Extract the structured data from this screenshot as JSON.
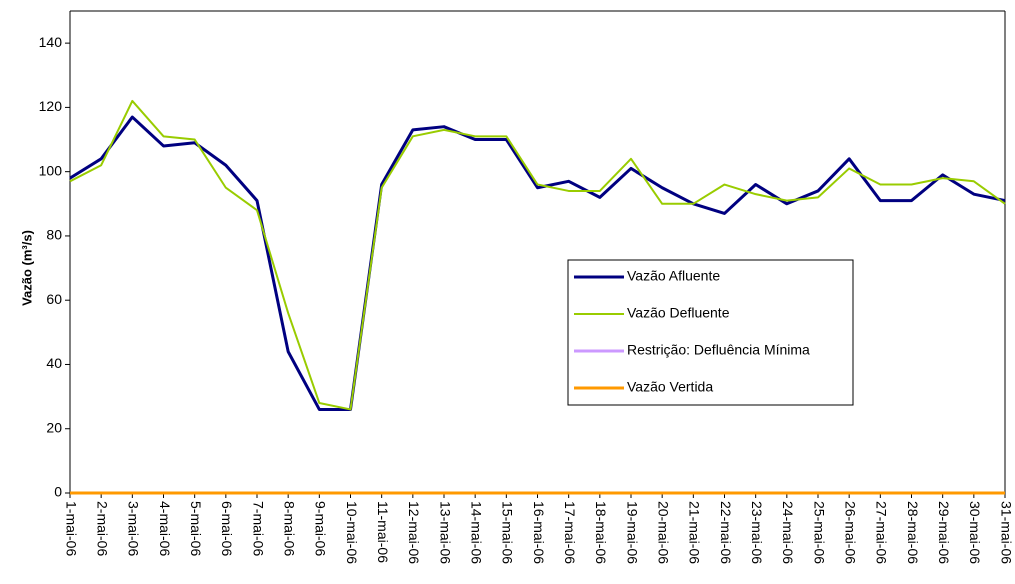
{
  "chart_data": {
    "type": "line",
    "y_label": "Vazão (m³/s)",
    "categories": [
      "1-mai-06",
      "2-mai-06",
      "3-mai-06",
      "4-mai-06",
      "5-mai-06",
      "6-mai-06",
      "7-mai-06",
      "8-mai-06",
      "9-mai-06",
      "10-mai-06",
      "11-mai-06",
      "12-mai-06",
      "13-mai-06",
      "14-mai-06",
      "15-mai-06",
      "16-mai-06",
      "17-mai-06",
      "18-mai-06",
      "19-mai-06",
      "20-mai-06",
      "21-mai-06",
      "22-mai-06",
      "23-mai-06",
      "24-mai-06",
      "25-mai-06",
      "26-mai-06",
      "27-mai-06",
      "28-mai-06",
      "29-mai-06",
      "30-mai-06",
      "31-mai-06"
    ],
    "series": [
      {
        "name": "Vazão Afluente",
        "color": "#000080",
        "width": 3,
        "values": [
          98,
          104,
          117,
          108,
          109,
          102,
          91,
          44,
          26,
          26,
          96,
          113,
          114,
          110,
          110,
          95,
          97,
          92,
          101,
          95,
          90,
          87,
          96,
          90,
          94,
          104,
          91,
          91,
          99,
          93,
          91
        ]
      },
      {
        "name": "Vazão Defluente",
        "color": "#99cc00",
        "width": 2,
        "values": [
          97,
          102,
          122,
          111,
          110,
          95,
          88,
          56,
          28,
          26,
          95,
          111,
          113,
          111,
          111,
          96,
          94,
          94,
          104,
          90,
          90,
          96,
          93,
          91,
          92,
          101,
          96,
          96,
          98,
          97,
          90
        ]
      },
      {
        "name": "Restrição: Defluência Mínima",
        "color": "#cc99ff",
        "width": 3,
        "values": [
          0,
          0,
          0,
          0,
          0,
          0,
          0,
          0,
          0,
          0,
          0,
          0,
          0,
          0,
          0,
          0,
          0,
          0,
          0,
          0,
          0,
          0,
          0,
          0,
          0,
          0,
          0,
          0,
          0,
          0,
          0
        ]
      },
      {
        "name": "Vazão Vertida",
        "color": "#ff9900",
        "width": 3,
        "values": [
          0,
          0,
          0,
          0,
          0,
          0,
          0,
          0,
          0,
          0,
          0,
          0,
          0,
          0,
          0,
          0,
          0,
          0,
          0,
          0,
          0,
          0,
          0,
          0,
          0,
          0,
          0,
          0,
          0,
          0,
          0
        ]
      }
    ],
    "ylim": [
      0,
      150
    ],
    "yticks": [
      0,
      20,
      40,
      60,
      80,
      100,
      120,
      140
    ],
    "grid": false
  }
}
